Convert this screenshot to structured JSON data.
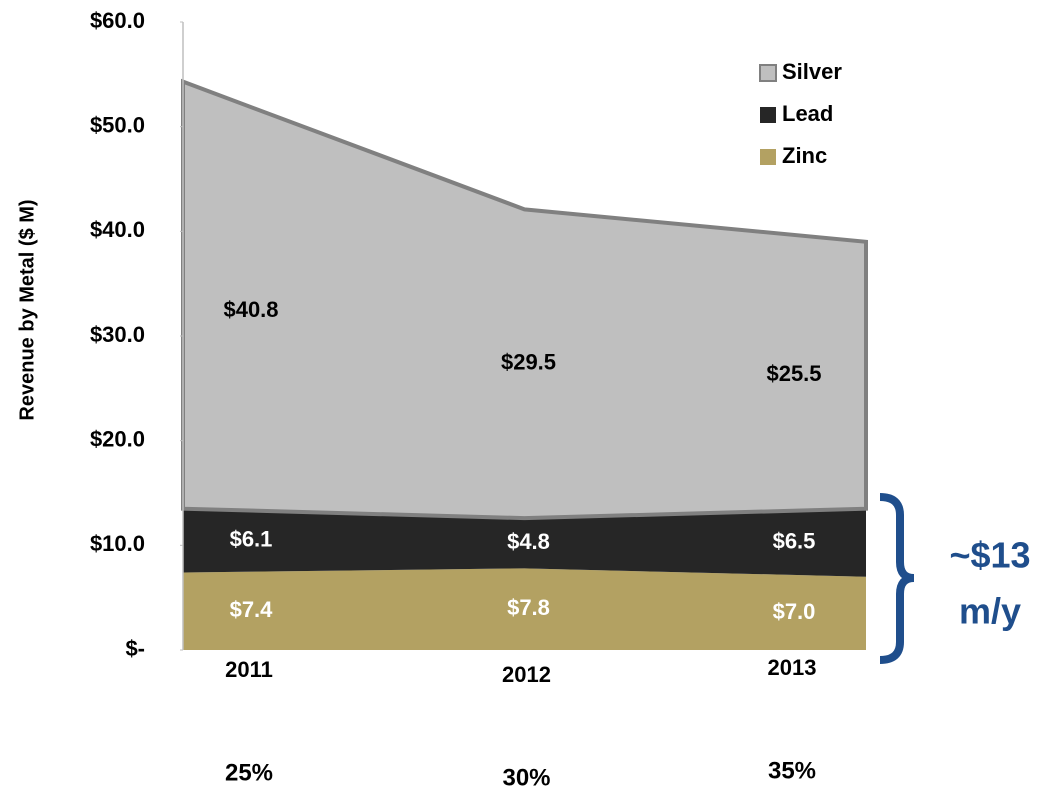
{
  "chart_data": {
    "type": "stacked_area",
    "y_axis_label": "Revenue by Metal ($ M)",
    "categories": [
      "2011",
      "2012",
      "2013"
    ],
    "category_sublabels": [
      "25%",
      "30%",
      "35%"
    ],
    "ylim": [
      0,
      60
    ],
    "yticks": [
      {
        "value": 0,
        "label": "$-"
      },
      {
        "value": 10,
        "label": "$10.0"
      },
      {
        "value": 20,
        "label": "$20.0"
      },
      {
        "value": 30,
        "label": "$30.0"
      },
      {
        "value": 40,
        "label": "$40.0"
      },
      {
        "value": 50,
        "label": "$50.0"
      },
      {
        "value": 60,
        "label": "$60.0"
      }
    ],
    "series": [
      {
        "name": "Zinc",
        "color": "#b3a162",
        "label_color": "#ffffff",
        "values": [
          7.4,
          7.8,
          7.0
        ],
        "value_labels": [
          "$7.4",
          "$7.8",
          "$7.0"
        ]
      },
      {
        "name": "Lead",
        "color": "#262626",
        "label_color": "#ffffff",
        "values": [
          6.1,
          4.8,
          6.5
        ],
        "value_labels": [
          "$6.1",
          "$4.8",
          "$6.5"
        ]
      },
      {
        "name": "Silver",
        "color": "#bfbfbf",
        "label_color": "#000000",
        "values": [
          40.8,
          29.5,
          25.5
        ],
        "value_labels": [
          "$40.8",
          "$29.5",
          "$25.5"
        ]
      }
    ],
    "legend": "upper right",
    "annotations": [
      "~$13",
      "m/y"
    ],
    "annotation_color": "#1f4e8c"
  }
}
